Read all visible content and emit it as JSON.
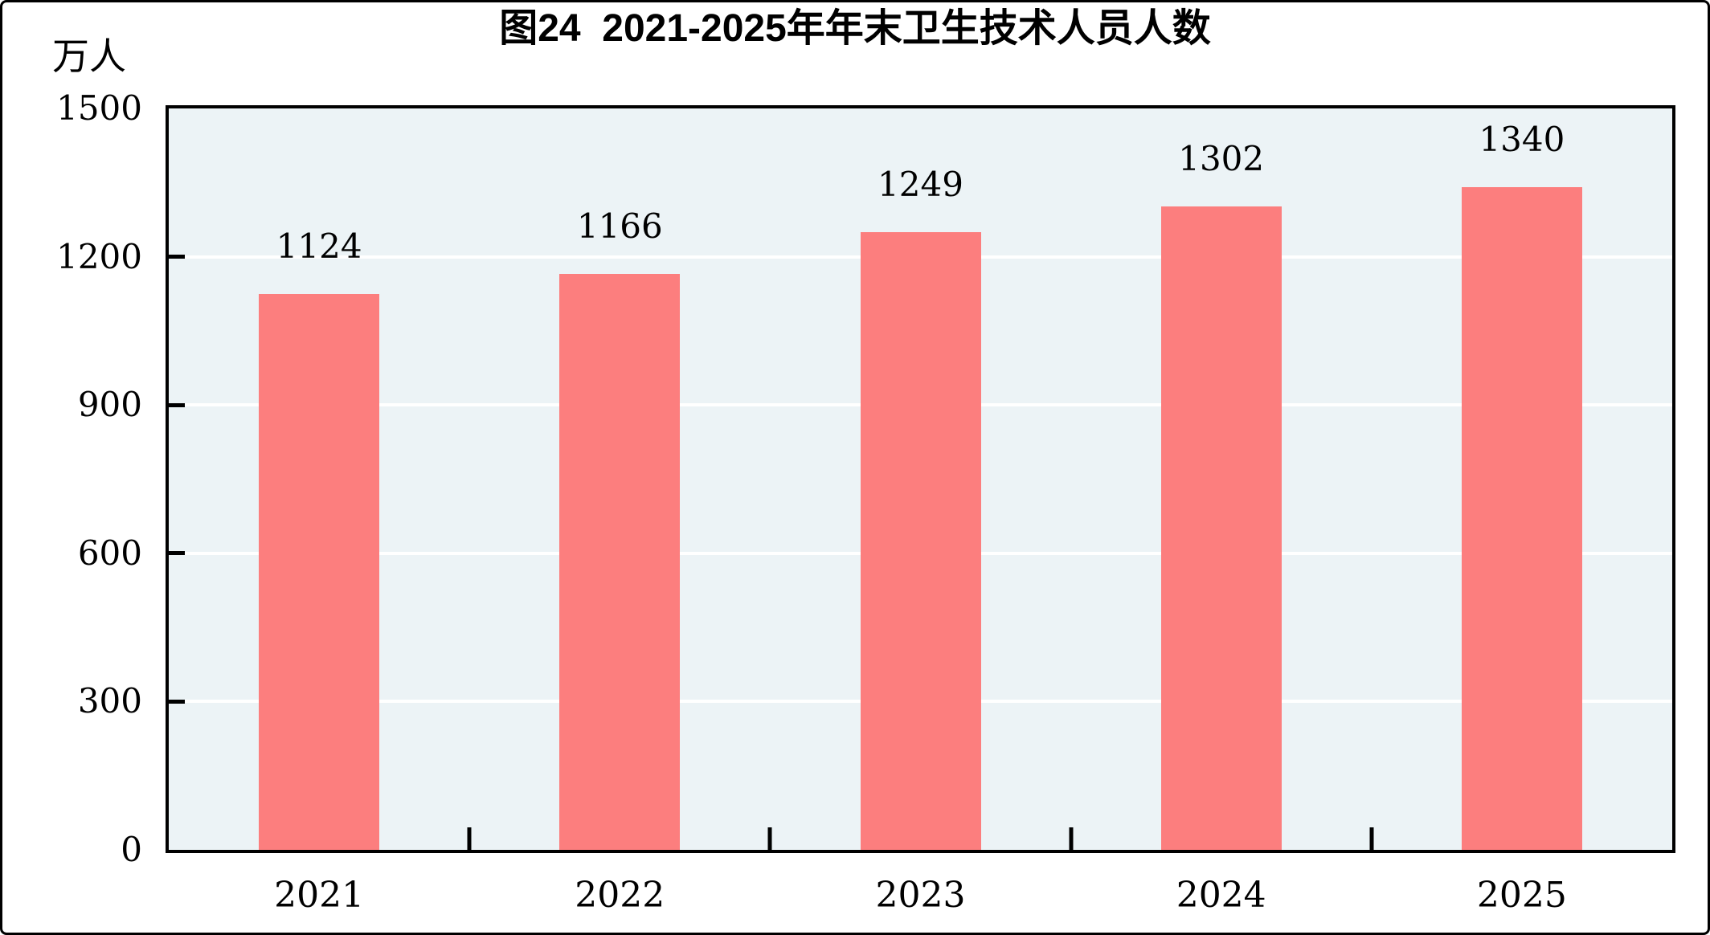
{
  "figure": {
    "background": "#FFFFFF",
    "border_color": "#000000"
  },
  "chart_data": {
    "type": "bar",
    "title": "图24  2021-2025年年末卫生技术人员人数",
    "unit_label": "万人",
    "categories": [
      "2021",
      "2022",
      "2023",
      "2024",
      "2025"
    ],
    "values": [
      1124,
      1166,
      1249,
      1302,
      1340
    ],
    "value_labels": [
      "1124",
      "1166",
      "1249",
      "1302",
      "1340"
    ],
    "xlabel": "",
    "ylabel": "万人",
    "ylim": [
      0,
      1500
    ],
    "yticks": [
      0,
      300,
      600,
      900,
      1200,
      1500
    ],
    "grid": true,
    "gridline_axis": "y",
    "legend_position": "none",
    "colors": {
      "bar": "#FC7E7E",
      "plot_background": "#ECF3F6",
      "gridline": "#FFFFFF",
      "axis": "#000000",
      "text": "#000000"
    }
  }
}
